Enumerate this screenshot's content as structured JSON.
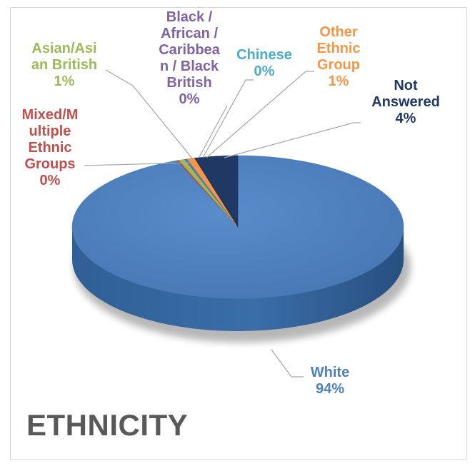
{
  "chart_data": {
    "type": "pie",
    "title": "ETHNICITY",
    "style": "3d",
    "slices": [
      {
        "label": "White",
        "display_value": "94%",
        "value": 94,
        "color": "#4f81bd",
        "label_color": "#4f81bd",
        "label_lines": [
          "White",
          "94%"
        ]
      },
      {
        "label": "Mixed/Multiple Ethnic Groups",
        "display_value": "0%",
        "value": 0.2,
        "color": "#c0504d",
        "label_color": "#c0504d",
        "label_lines": [
          "Mixed/M",
          "ultiple",
          "Ethnic",
          "Groups",
          "0%"
        ]
      },
      {
        "label": "Asian/Asian British",
        "display_value": "1%",
        "value": 0.6,
        "color": "#9bbb59",
        "label_color": "#9bbb59",
        "label_lines": [
          "Asian/Asi",
          "an British",
          "1%"
        ]
      },
      {
        "label": "Black / African / Caribbean / Black British",
        "display_value": "0%",
        "value": 0.2,
        "color": "#8064a2",
        "label_color": "#8064a2",
        "label_lines": [
          "Black /",
          "African /",
          "Caribbea",
          "n / Black",
          "British",
          "0%"
        ]
      },
      {
        "label": "Chinese",
        "display_value": "0%",
        "value": 0.1,
        "color": "#4bacc6",
        "label_color": "#4bacc6",
        "label_lines": [
          "Chinese",
          "0%"
        ]
      },
      {
        "label": "Other Ethnic Group",
        "display_value": "1%",
        "value": 0.7,
        "color": "#f79646",
        "label_color": "#f79646",
        "label_lines": [
          "Other",
          "Ethnic",
          "Group",
          "1%"
        ]
      },
      {
        "label": "Not Answered",
        "display_value": "4%",
        "value": 4.2,
        "color": "#1f3864",
        "label_color": "#1f3864",
        "label_lines": [
          "Not",
          "Answered",
          "4%"
        ]
      }
    ]
  }
}
